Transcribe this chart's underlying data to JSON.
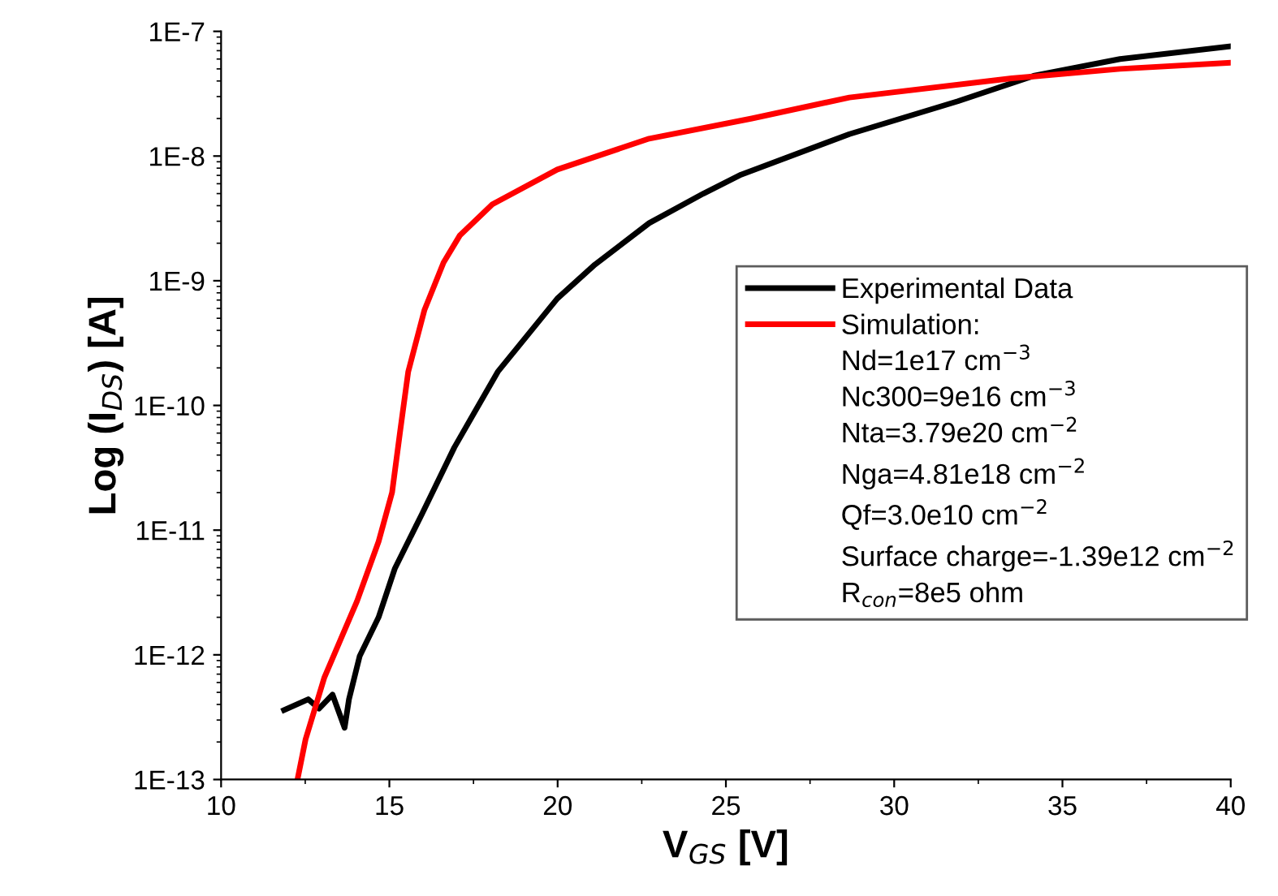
{
  "chart_data": {
    "type": "line",
    "xlabel": "V$_{GS}$ [V]",
    "ylabel": "Log (I$_{DS}$) [A]",
    "log": "y",
    "xlim": [
      10,
      40
    ],
    "xticks": [
      10,
      15,
      20,
      25,
      30,
      35,
      40
    ],
    "ylim": [
      1e-13,
      1e-07
    ],
    "yticks": [
      {
        "value": 1e-13,
        "label": "1E-13"
      },
      {
        "value": 1e-12,
        "label": "1E-12"
      },
      {
        "value": 1e-11,
        "label": "1E-11"
      },
      {
        "value": 1e-10,
        "label": "1E-10"
      },
      {
        "value": 1e-09,
        "label": "1E-9"
      },
      {
        "value": 1e-08,
        "label": "1E-8"
      },
      {
        "value": 1e-07,
        "label": "1E-7"
      }
    ],
    "grid": false,
    "legend": "right",
    "line_style": "solid",
    "marker": "none",
    "series": [
      {
        "name": "Experimental Data",
        "color": "#000000",
        "x": [
          11.87,
          12.59,
          12.91,
          13.31,
          13.67,
          13.8,
          14.12,
          14.68,
          15.16,
          15.97,
          16.93,
          18.22,
          19.99,
          21.11,
          22.72,
          24.33,
          25.45,
          28.67,
          31.89,
          34.14,
          36.71,
          40
        ],
        "values": [
          3.6e-13,
          4.4e-13,
          3.7e-13,
          4.8e-13,
          2.6e-13,
          4.4e-13,
          9.8e-13,
          2e-12,
          4.9e-12,
          1.35e-11,
          4.6e-11,
          1.86e-10,
          7.2e-10,
          1.35e-09,
          2.9e-09,
          5e-09,
          7.1e-09,
          1.5e-08,
          2.75e-08,
          4.4e-08,
          6e-08,
          7.6e-08
        ]
      },
      {
        "name": "Simulation:",
        "color": "#ff0000",
        "x": [
          12.27,
          12.51,
          13.07,
          14.04,
          14.68,
          15.08,
          15.32,
          15.56,
          16.04,
          16.61,
          17.09,
          18.06,
          19.99,
          22.72,
          25.77,
          28.67,
          33.49,
          36.71,
          40
        ],
        "values": [
          1e-13,
          2.1e-13,
          6.6e-13,
          2.7e-12,
          8.1e-12,
          2e-11,
          6.2e-11,
          1.86e-10,
          5.8e-10,
          1.4e-09,
          2.3e-09,
          4.1e-09,
          7.8e-09,
          1.38e-08,
          2e-08,
          2.95e-08,
          4.2e-08,
          5e-08,
          5.6e-08
        ]
      }
    ],
    "annotations": [
      "Nd=1e17 cm$^{−3}$",
      "Nc300=9e16 cm$^{−3}$",
      "Nta=3.79e20 cm$^{−2}$",
      "Nga=4.81e18 cm$^{−2}$",
      "Qf=3.0e10 cm$^{−2}$",
      "Surface charge=-1.39e12 cm$^{−2}$",
      "R$_{con}$=8e5 ohm"
    ]
  }
}
